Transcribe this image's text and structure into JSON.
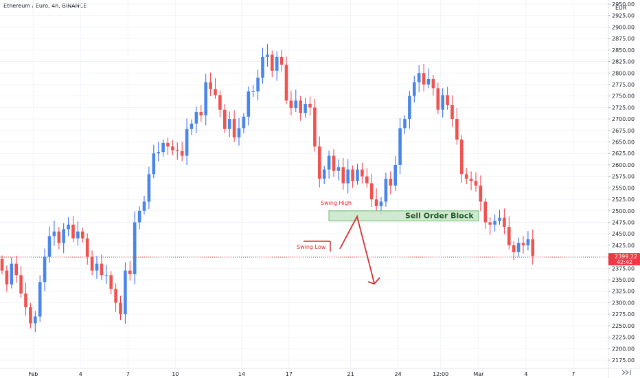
{
  "header": {
    "title": "Ethereum / Euro, 4h, BINANCE"
  },
  "chart_data": {
    "type": "candlestick",
    "title": "Ethereum / Euro, 4h, BINANCE",
    "currency": "EUR",
    "ylim": [
      2162,
      2960
    ],
    "y_ticks": [
      2175,
      2200,
      2225,
      2250,
      2275,
      2300,
      2325,
      2350,
      2375,
      2400,
      2425,
      2450,
      2475,
      2500,
      2525,
      2550,
      2575,
      2600,
      2625,
      2650,
      2675,
      2700,
      2725,
      2750,
      2775,
      2800,
      2825,
      2850,
      2875,
      2900,
      2925,
      2950
    ],
    "x_ticks": [
      "Feb",
      "4",
      "7",
      "10",
      "14",
      "17",
      "21",
      "24",
      "12:00",
      "Mar",
      "4",
      "7"
    ],
    "x_tick_bar_index": [
      7,
      17,
      27,
      37,
      51,
      61,
      74,
      84,
      93,
      101,
      111,
      121
    ],
    "current_price": {
      "value": 2399.22,
      "countdown": "42:42",
      "color": "#f23645"
    },
    "colors": {
      "up": "#2962ff",
      "down": "#f23645",
      "up_fill": "#4a86e8",
      "down_fill": "#ef5350",
      "zone_fill": "#c8e6c9",
      "zone_border": "#66bb6a",
      "annotation": "#d32f2f"
    },
    "closes": [
      2370,
      2340,
      2385,
      2360,
      2320,
      2290,
      2255,
      2270,
      2345,
      2400,
      2445,
      2455,
      2430,
      2460,
      2470,
      2440,
      2455,
      2440,
      2400,
      2370,
      2385,
      2360,
      2360,
      2330,
      2300,
      2275,
      2370,
      2362,
      2475,
      2500,
      2520,
      2580,
      2625,
      2628,
      2648,
      2640,
      2632,
      2630,
      2620,
      2678,
      2690,
      2715,
      2708,
      2780,
      2765,
      2752,
      2720,
      2678,
      2700,
      2660,
      2680,
      2705,
      2760,
      2760,
      2790,
      2835,
      2840,
      2805,
      2835,
      2818,
      2740,
      2724,
      2740,
      2713,
      2733,
      2725,
      2640,
      2570,
      2590,
      2620,
      2587,
      2595,
      2560,
      2590,
      2565,
      2590,
      2575,
      2560,
      2525,
      2510,
      2520,
      2570,
      2555,
      2600,
      2680,
      2700,
      2750,
      2780,
      2800,
      2775,
      2787,
      2767,
      2720,
      2752,
      2730,
      2700,
      2655,
      2580,
      2570,
      2565,
      2555,
      2520,
      2475,
      2470,
      2478,
      2485,
      2465,
      2425,
      2410,
      2430,
      2425,
      2438,
      2402
    ],
    "annotations": [
      {
        "text": "Swing High",
        "price": 2502
      },
      {
        "text": "Swing Low",
        "price": 2434
      },
      {
        "text": "Sell Order Block",
        "price_top": 2500,
        "price_bottom": 2478
      }
    ],
    "grid": true
  }
}
